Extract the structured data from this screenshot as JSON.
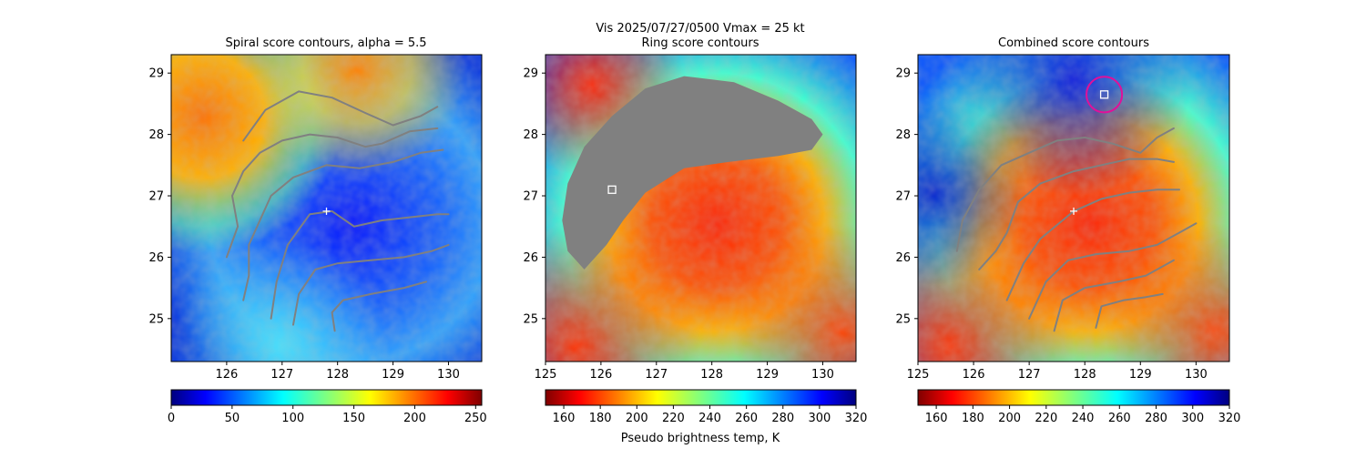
{
  "suptitle": "Vis  2025/07/27/0500    Vmax = 25 kt",
  "colors": {
    "contour": "#808080",
    "marker": "#ffffff",
    "circle": "#e0109a",
    "gray_mask": "#808080"
  },
  "chart_data": [
    {
      "type": "heatmap",
      "title": "Spiral score contours, alpha =  5.5",
      "xlim": [
        125.0,
        130.6
      ],
      "ylim": [
        24.3,
        29.3
      ],
      "xticks": [
        126,
        127,
        128,
        129,
        130
      ],
      "yticks": [
        25,
        26,
        27,
        28,
        29
      ],
      "colormap": "jet",
      "color_reversed": false,
      "colorbar": {
        "min": 0,
        "max": 255,
        "ticks": [
          0,
          50,
          100,
          150,
          200,
          250
        ],
        "label": ""
      },
      "center_marker": {
        "lon": 127.8,
        "lat": 26.75
      },
      "contours": [
        [
          [
            126.0,
            26.0
          ],
          [
            126.2,
            26.5
          ],
          [
            126.1,
            27.0
          ],
          [
            126.3,
            27.4
          ],
          [
            126.6,
            27.7
          ],
          [
            127.0,
            27.9
          ],
          [
            127.5,
            28.0
          ],
          [
            128.0,
            27.95
          ],
          [
            128.5,
            27.8
          ],
          [
            128.8,
            27.85
          ],
          [
            129.3,
            28.05
          ],
          [
            129.8,
            28.1
          ]
        ],
        [
          [
            126.3,
            25.3
          ],
          [
            126.4,
            25.7
          ],
          [
            126.4,
            26.2
          ],
          [
            126.6,
            26.6
          ],
          [
            126.8,
            27.0
          ],
          [
            127.2,
            27.3
          ],
          [
            127.8,
            27.5
          ],
          [
            128.4,
            27.45
          ],
          [
            129.0,
            27.55
          ],
          [
            129.5,
            27.7
          ],
          [
            129.9,
            27.75
          ]
        ],
        [
          [
            126.8,
            25.0
          ],
          [
            126.9,
            25.6
          ],
          [
            127.1,
            26.2
          ],
          [
            127.5,
            26.7
          ],
          [
            127.9,
            26.75
          ],
          [
            128.3,
            26.5
          ],
          [
            128.8,
            26.6
          ],
          [
            129.3,
            26.65
          ],
          [
            129.8,
            26.7
          ],
          [
            130.0,
            26.7
          ]
        ],
        [
          [
            127.2,
            24.9
          ],
          [
            127.3,
            25.4
          ],
          [
            127.6,
            25.8
          ],
          [
            128.0,
            25.9
          ],
          [
            128.6,
            25.95
          ],
          [
            129.2,
            26.0
          ],
          [
            129.7,
            26.1
          ],
          [
            130.0,
            26.2
          ]
        ],
        [
          [
            127.95,
            24.8
          ],
          [
            127.9,
            25.1
          ],
          [
            128.1,
            25.3
          ],
          [
            128.6,
            25.4
          ],
          [
            129.2,
            25.5
          ],
          [
            129.6,
            25.6
          ]
        ],
        [
          [
            126.3,
            27.9
          ],
          [
            126.7,
            28.4
          ],
          [
            127.3,
            28.7
          ],
          [
            127.9,
            28.6
          ],
          [
            128.5,
            28.35
          ],
          [
            129.0,
            28.15
          ],
          [
            129.5,
            28.3
          ],
          [
            129.8,
            28.45
          ]
        ]
      ]
    },
    {
      "type": "heatmap",
      "title": "Ring score contours",
      "xlim": [
        125.0,
        130.6
      ],
      "ylim": [
        24.3,
        29.3
      ],
      "xticks": [
        125,
        126,
        127,
        128,
        129,
        130
      ],
      "yticks": [
        25,
        26,
        27,
        28,
        29
      ],
      "colormap": "jet",
      "color_reversed": true,
      "colorbar": {
        "min": 150,
        "max": 320,
        "ticks": [
          160,
          180,
          200,
          220,
          240,
          260,
          280,
          300,
          320
        ],
        "label": "Pseudo brightness temp, K"
      },
      "square_marker": {
        "lon": 126.2,
        "lat": 27.1
      },
      "masked_region": [
        [
          125.3,
          26.6
        ],
        [
          125.4,
          27.2
        ],
        [
          125.7,
          27.8
        ],
        [
          126.2,
          28.3
        ],
        [
          126.8,
          28.75
        ],
        [
          127.5,
          28.95
        ],
        [
          128.4,
          28.85
        ],
        [
          129.2,
          28.55
        ],
        [
          129.8,
          28.25
        ],
        [
          130.0,
          28.0
        ],
        [
          129.8,
          27.75
        ],
        [
          129.2,
          27.65
        ],
        [
          128.3,
          27.55
        ],
        [
          127.5,
          27.45
        ],
        [
          126.8,
          27.05
        ],
        [
          126.4,
          26.6
        ],
        [
          126.1,
          26.2
        ],
        [
          125.7,
          25.8
        ],
        [
          125.4,
          26.1
        ]
      ]
    },
    {
      "type": "heatmap",
      "title": "Combined score contours",
      "xlim": [
        125.0,
        130.6
      ],
      "ylim": [
        24.3,
        29.3
      ],
      "xticks": [
        125,
        126,
        127,
        128,
        129,
        130
      ],
      "yticks": [
        25,
        26,
        27,
        28,
        29
      ],
      "colormap": "jet",
      "color_reversed": true,
      "colorbar": {
        "min": 150,
        "max": 320,
        "ticks": [
          160,
          180,
          200,
          220,
          240,
          260,
          280,
          300,
          320
        ],
        "label": ""
      },
      "center_marker": {
        "lon": 127.8,
        "lat": 26.75
      },
      "square_marker": {
        "lon": 128.35,
        "lat": 28.65
      },
      "circle_marker": {
        "lon": 128.35,
        "lat": 28.65,
        "radius_deg": 0.32
      },
      "contours": [
        [
          [
            125.7,
            26.1
          ],
          [
            125.8,
            26.6
          ],
          [
            126.1,
            27.1
          ],
          [
            126.5,
            27.5
          ],
          [
            127.0,
            27.7
          ],
          [
            127.5,
            27.9
          ],
          [
            128.0,
            27.95
          ],
          [
            128.5,
            27.85
          ],
          [
            129.0,
            27.7
          ],
          [
            129.3,
            27.95
          ],
          [
            129.6,
            28.1
          ]
        ],
        [
          [
            126.1,
            25.8
          ],
          [
            126.4,
            26.1
          ],
          [
            126.6,
            26.4
          ],
          [
            126.8,
            26.9
          ],
          [
            127.2,
            27.2
          ],
          [
            127.8,
            27.4
          ],
          [
            128.3,
            27.5
          ],
          [
            128.8,
            27.6
          ],
          [
            129.3,
            27.6
          ],
          [
            129.6,
            27.55
          ]
        ],
        [
          [
            126.6,
            25.3
          ],
          [
            126.9,
            25.9
          ],
          [
            127.2,
            26.3
          ],
          [
            127.6,
            26.6
          ],
          [
            127.8,
            26.75
          ],
          [
            128.3,
            26.95
          ],
          [
            128.8,
            27.05
          ],
          [
            129.3,
            27.1
          ],
          [
            129.7,
            27.1
          ]
        ],
        [
          [
            127.0,
            25.0
          ],
          [
            127.3,
            25.6
          ],
          [
            127.7,
            25.95
          ],
          [
            128.2,
            26.05
          ],
          [
            128.8,
            26.1
          ],
          [
            129.3,
            26.2
          ],
          [
            129.7,
            26.4
          ],
          [
            130.0,
            26.55
          ]
        ],
        [
          [
            127.45,
            24.8
          ],
          [
            127.6,
            25.3
          ],
          [
            128.0,
            25.5
          ],
          [
            128.6,
            25.6
          ],
          [
            129.1,
            25.7
          ],
          [
            129.6,
            25.95
          ]
        ],
        [
          [
            128.2,
            24.85
          ],
          [
            128.3,
            25.2
          ],
          [
            128.7,
            25.3
          ],
          [
            129.1,
            25.35
          ],
          [
            129.4,
            25.4
          ]
        ]
      ]
    }
  ]
}
